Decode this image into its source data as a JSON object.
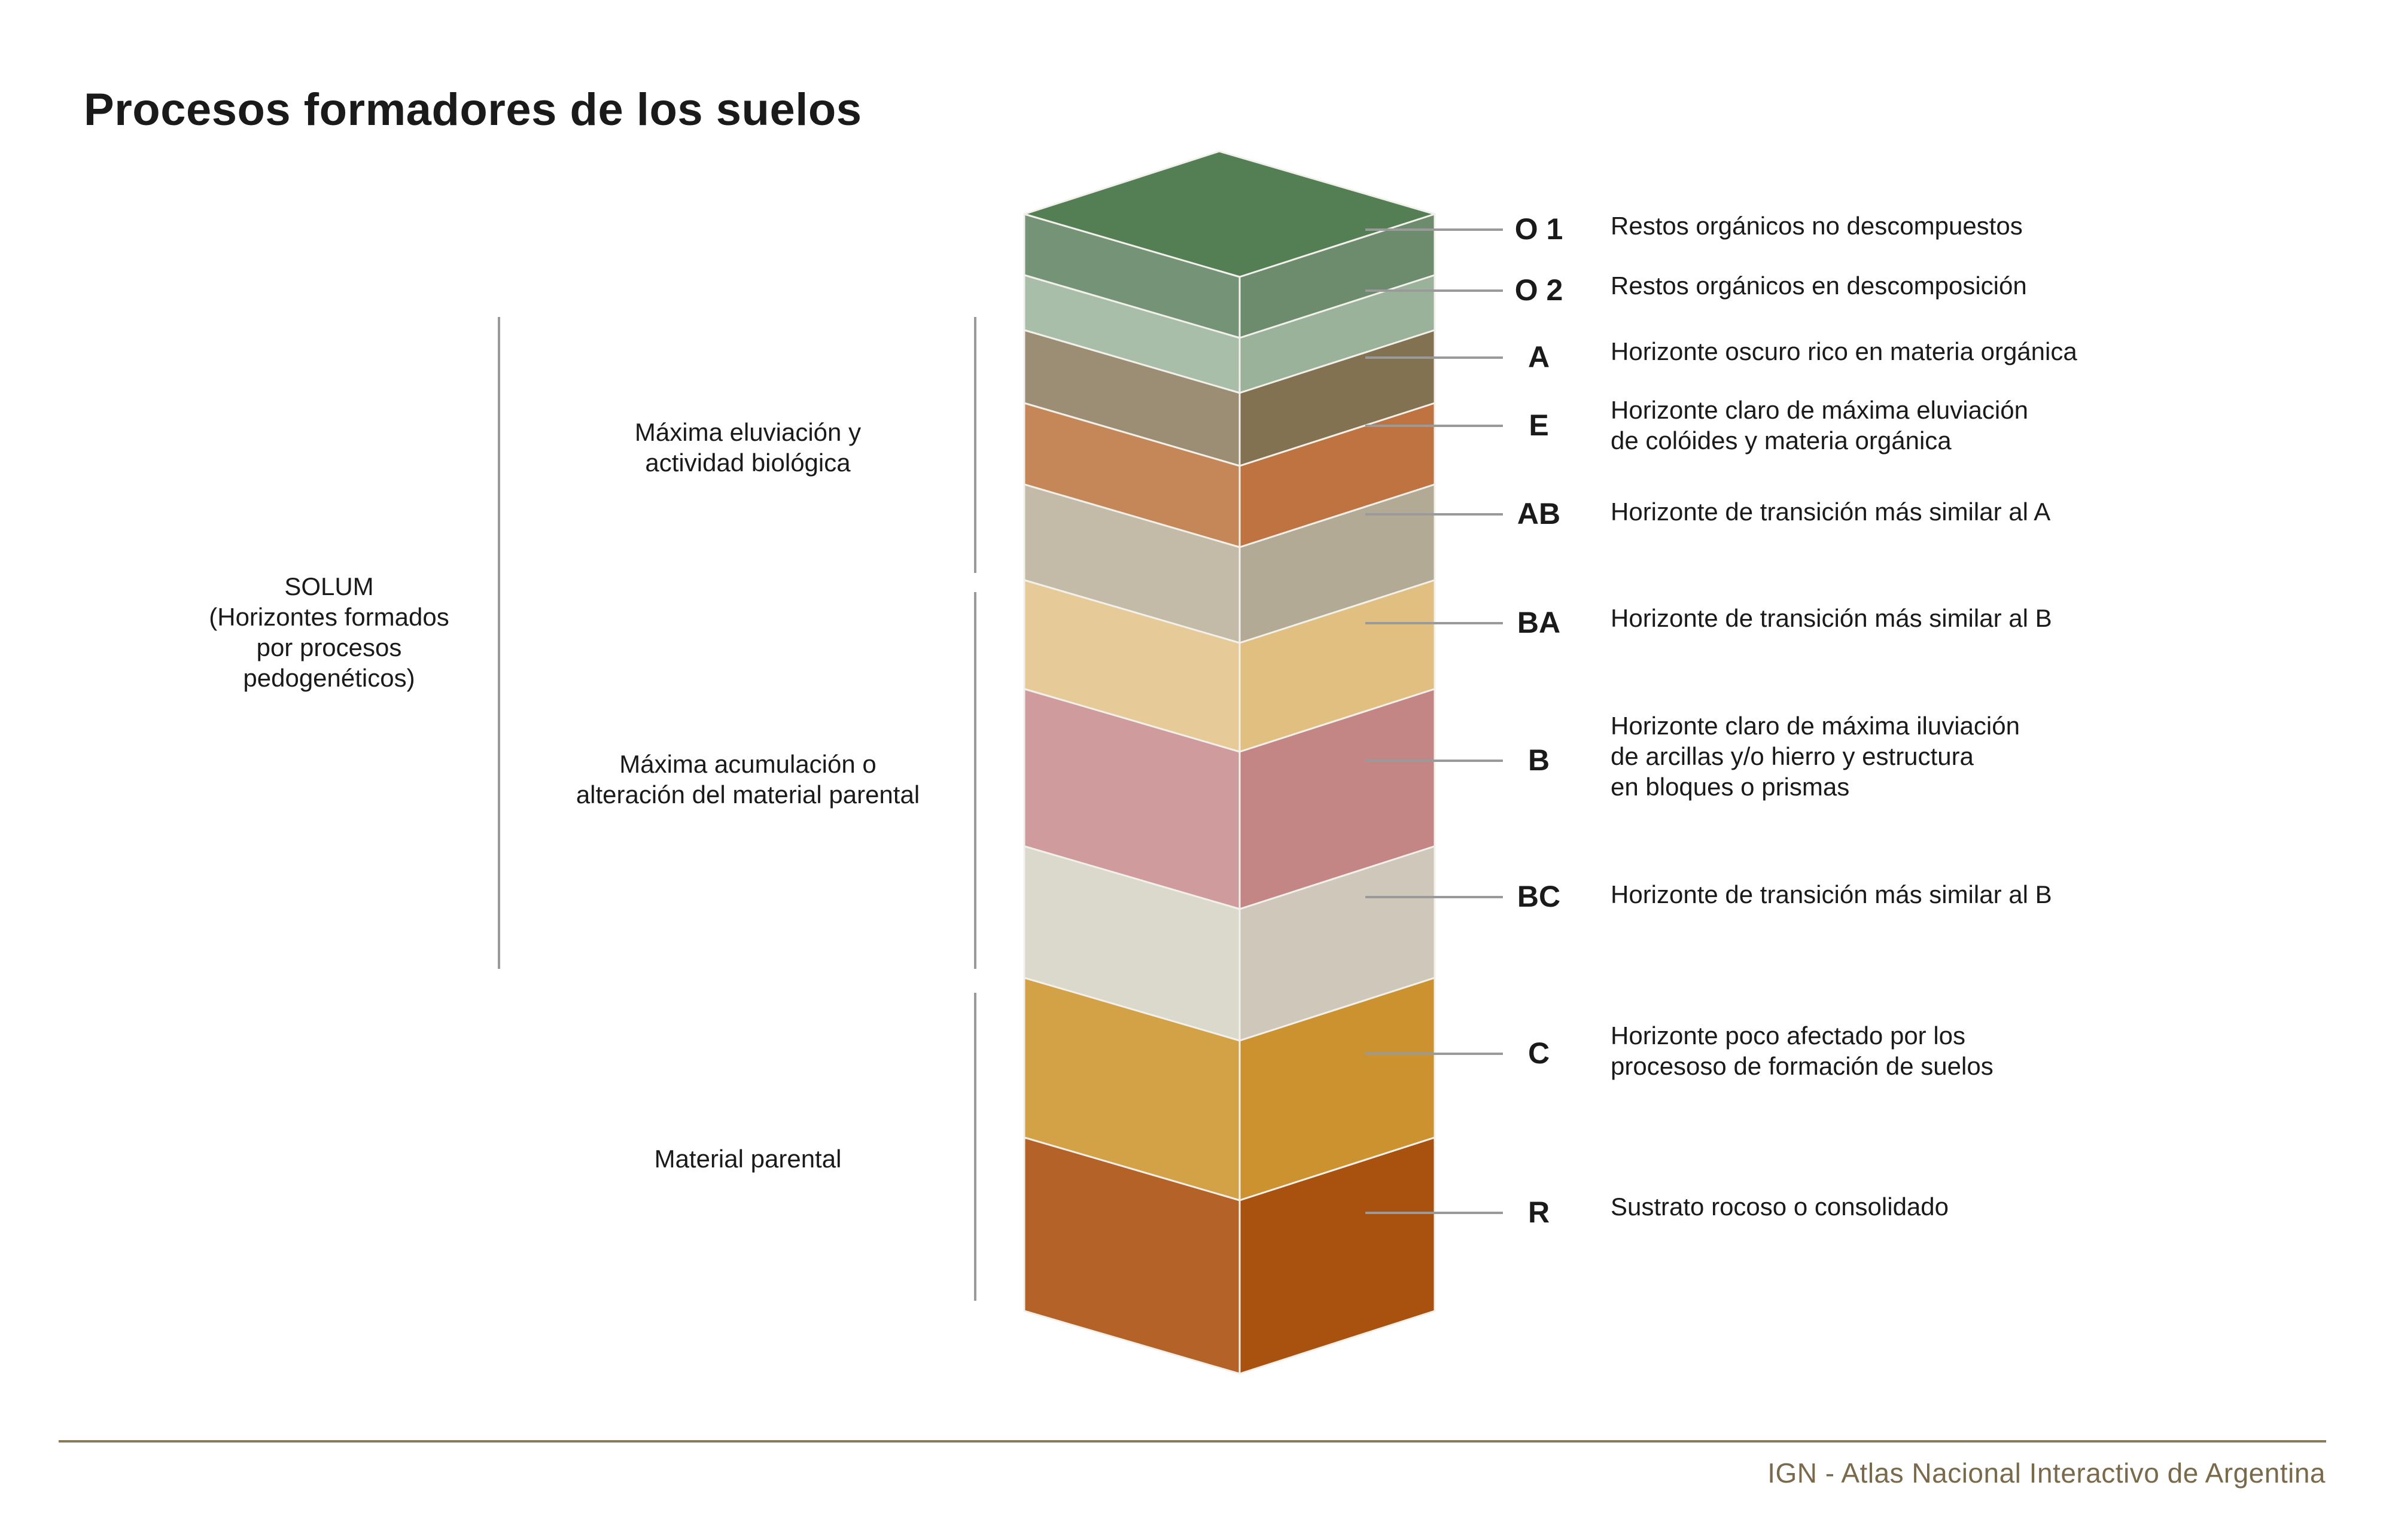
{
  "title": "Procesos formadores de los suelos",
  "groups": {
    "solum": {
      "lines": [
        "SOLUM",
        "(Horizontes formados",
        "por procesos",
        "pedogenéticos)"
      ]
    },
    "eluviacion": {
      "lines": [
        "Máxima eluviación y",
        "actividad biológica"
      ]
    },
    "acumulacion": {
      "lines": [
        "Máxima acumulación o",
        "alteración del material parental"
      ]
    },
    "parental": {
      "lines": [
        "Material parental"
      ]
    }
  },
  "horizons": [
    {
      "code": "O 1",
      "desc": [
        "Restos orgánicos no descompuestos"
      ],
      "colors": [
        "#759477",
        "#6d8b6d"
      ]
    },
    {
      "code": "O 2",
      "desc": [
        "Restos orgánicos en descomposición"
      ],
      "colors": [
        "#a9bea9",
        "#9ab29a"
      ]
    },
    {
      "code": "A",
      "desc": [
        "Horizonte oscuro rico en materia orgánica"
      ],
      "colors": [
        "#9b8e74",
        "#837252"
      ]
    },
    {
      "code": "E",
      "desc": [
        "Horizonte claro de máxima eluviación",
        "de colóides y materia orgánica"
      ],
      "colors": [
        "#c58757",
        "#bf7340"
      ]
    },
    {
      "code": "AB",
      "desc": [
        "Horizonte de transición más similar al A"
      ],
      "colors": [
        "#c3baa8",
        "#b3aa96"
      ]
    },
    {
      "code": "BA",
      "desc": [
        "Horizonte de transición más similar al B"
      ],
      "colors": [
        "#e6cb98",
        "#e0bf80"
      ]
    },
    {
      "code": "B",
      "desc": [
        "Horizonte claro de máxima iluviación",
        "de arcillas y/o hierro y estructura",
        "en bloques o prismas"
      ],
      "colors": [
        "#cf9b9d",
        "#c48585"
      ]
    },
    {
      "code": "BC",
      "desc": [
        "Horizonte de transición más similar al B"
      ],
      "colors": [
        "#dbd8cc",
        "#cfc8ba"
      ]
    },
    {
      "code": "C",
      "desc": [
        "Horizonte poco afectado por los",
        "procesoso de formación de suelos"
      ],
      "colors": [
        "#d3a146",
        "#cc9230"
      ]
    },
    {
      "code": "R",
      "desc": [
        "Sustrato rocoso o consolidado"
      ],
      "colors": [
        "#b56228",
        "#a9510f"
      ]
    }
  ],
  "top_color": "#547e54",
  "line_color": "#9a9a9a",
  "footer": "IGN - Atlas Nacional Interactivo de Argentina"
}
